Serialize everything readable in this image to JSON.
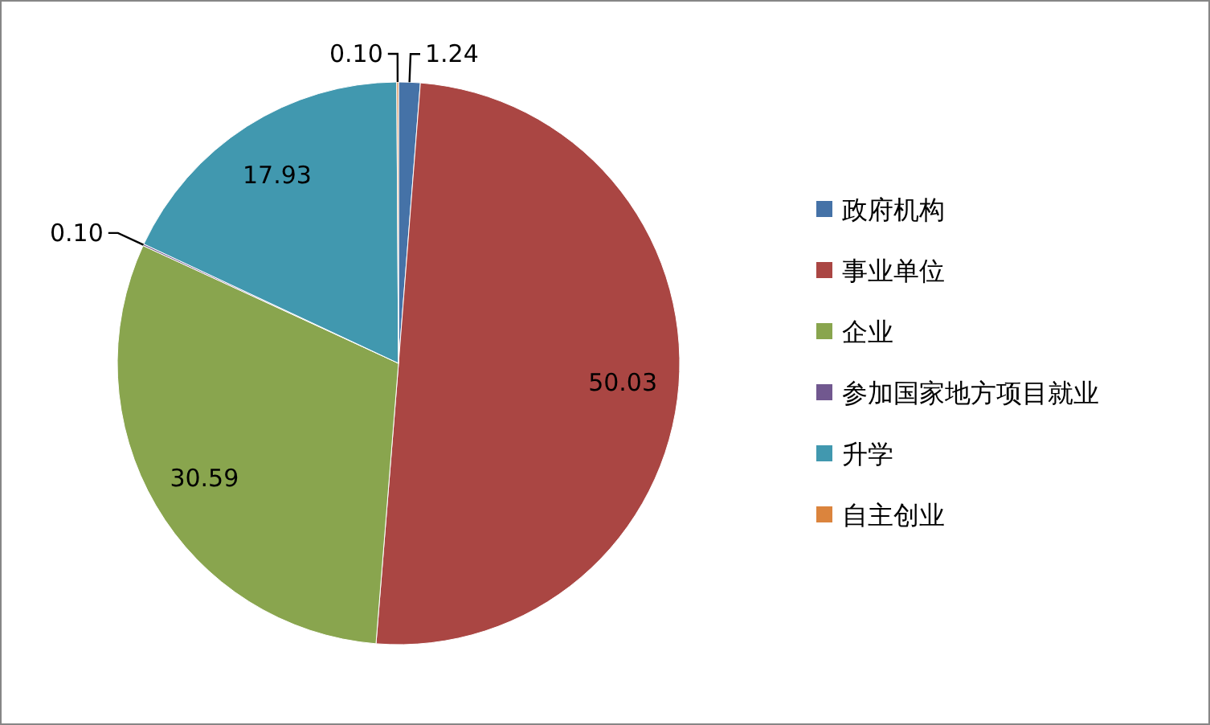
{
  "chart_data": {
    "type": "pie",
    "categories": [
      "政府机构",
      "事业单位",
      "企业",
      "参加国家地方项目就业",
      "升学",
      "自主创业"
    ],
    "values": [
      1.24,
      50.03,
      30.59,
      0.1,
      17.93,
      0.1
    ],
    "colors": [
      "#4572a7",
      "#aa4643",
      "#89a54e",
      "#71588f",
      "#4198af",
      "#db843d"
    ],
    "value_labels": [
      "1.24",
      "50.03",
      "30.59",
      "0.10",
      "17.93",
      "0.10"
    ],
    "legend": "right"
  }
}
